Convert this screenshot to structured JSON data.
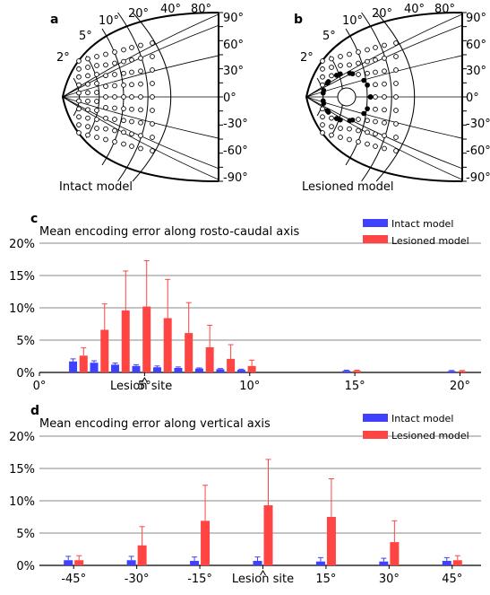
{
  "panels": {
    "a": {
      "letter": "a",
      "caption": "Intact model"
    },
    "b": {
      "letter": "b",
      "caption": "Lesioned model"
    },
    "c": {
      "letter": "c"
    },
    "d": {
      "letter": "d"
    }
  },
  "map_axes": {
    "eccentricity_labels": [
      "2°",
      "5°",
      "10°",
      "20°",
      "40°",
      "80°"
    ],
    "polar_labels": [
      "90°",
      "60°",
      "30°",
      "0°",
      "-30°",
      "-60°",
      "-90°"
    ]
  },
  "colors": {
    "intact": "#4040ff",
    "lesioned": "#ff4444",
    "error_intact": "#4040ff",
    "error_lesioned": "#ff4444"
  },
  "chart_data": [
    {
      "type": "bar",
      "title": "Mean encoding error along rosto-caudal axis",
      "xlabel": "",
      "ylabel": "",
      "ylim": [
        0,
        20
      ],
      "xlim": [
        0,
        21
      ],
      "yticks": [
        "0%",
        "5%",
        "10%",
        "15%",
        "20%"
      ],
      "xticks": [
        "0°",
        "5°",
        "10°",
        "15°",
        "20°"
      ],
      "annotation": "Lesion site",
      "legend": "top-right",
      "series": [
        {
          "name": "Intact model",
          "x": [
            1.6,
            2.6,
            3.6,
            4.6,
            5.6,
            6.6,
            7.6,
            8.6,
            9.6,
            14.6,
            19.6
          ],
          "values": [
            1.7,
            1.5,
            1.2,
            1.0,
            0.8,
            0.7,
            0.6,
            0.5,
            0.4,
            0.25,
            0.2
          ],
          "errors": [
            0.4,
            0.3,
            0.25,
            0.2,
            0.2,
            0.15,
            0.1,
            0.1,
            0.1,
            0.1,
            0.1
          ]
        },
        {
          "name": "Lesioned model",
          "x": [
            2.1,
            3.1,
            4.1,
            5.1,
            6.1,
            7.1,
            8.1,
            9.1,
            10.1,
            15.1,
            20.1
          ],
          "values": [
            2.6,
            6.6,
            9.6,
            10.2,
            8.4,
            6.1,
            3.9,
            2.1,
            1.0,
            0.25,
            0.2
          ],
          "errors": [
            1.2,
            4.0,
            6.1,
            7.1,
            6.0,
            4.7,
            3.4,
            2.2,
            0.9,
            0.1,
            0.1
          ]
        }
      ]
    },
    {
      "type": "bar",
      "title": "Mean encoding error along vertical axis",
      "xlabel": "",
      "ylabel": "",
      "ylim": [
        0,
        20
      ],
      "yticks": [
        "0%",
        "5%",
        "10%",
        "15%",
        "20%"
      ],
      "categories": [
        "-45°",
        "-30°",
        "-15°",
        "Lesion site",
        "15°",
        "30°",
        "45°"
      ],
      "annotation": "Lesion site",
      "legend": "top-right",
      "series": [
        {
          "name": "Intact model",
          "values": [
            0.8,
            0.8,
            0.7,
            0.7,
            0.6,
            0.6,
            0.7
          ],
          "errors": [
            0.6,
            0.6,
            0.6,
            0.6,
            0.6,
            0.5,
            0.5
          ]
        },
        {
          "name": "Lesioned model",
          "values": [
            0.8,
            3.1,
            6.9,
            9.3,
            7.5,
            3.6,
            0.8
          ],
          "errors": [
            0.7,
            2.9,
            5.5,
            7.1,
            5.9,
            3.3,
            0.7
          ]
        }
      ]
    }
  ]
}
